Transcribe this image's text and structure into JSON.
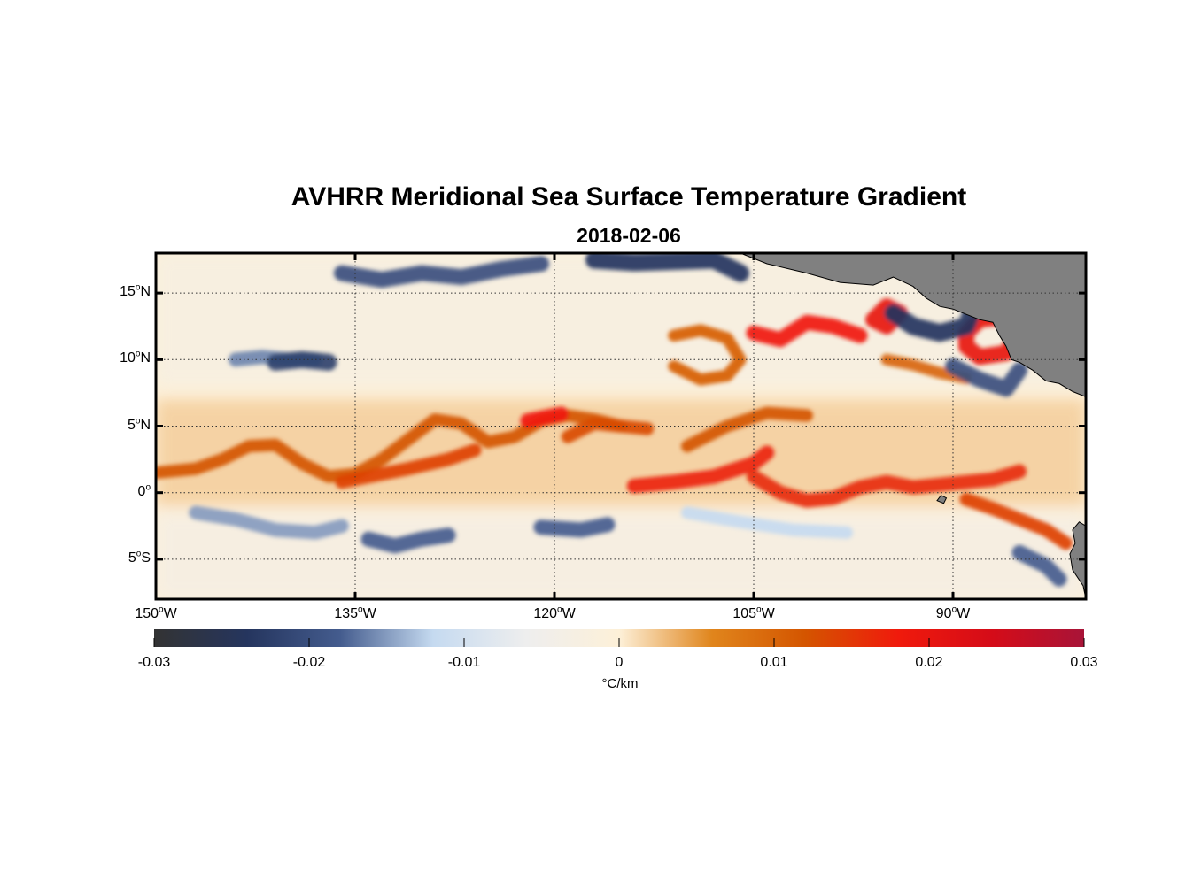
{
  "title": "AVHRR Meridional Sea Surface Temperature Gradient",
  "subtitle": "2018-02-06",
  "map": {
    "projection": "equirectangular",
    "lon_range": [
      -150,
      -80
    ],
    "lat_range": [
      -8,
      18
    ],
    "grid": "dotted",
    "land_color": "#808080",
    "lat_ticks": [
      {
        "value": 15,
        "num": "15",
        "hemi": "N"
      },
      {
        "value": 10,
        "num": "10",
        "hemi": "N"
      },
      {
        "value": 5,
        "num": "5",
        "hemi": "N"
      },
      {
        "value": 0,
        "num": "0",
        "hemi": ""
      },
      {
        "value": -5,
        "num": "5",
        "hemi": "S"
      }
    ],
    "lon_ticks": [
      {
        "value": -150,
        "num": "150",
        "hemi": "W"
      },
      {
        "value": -135,
        "num": "135",
        "hemi": "W"
      },
      {
        "value": -120,
        "num": "120",
        "hemi": "W"
      },
      {
        "value": -105,
        "num": "105",
        "hemi": "W"
      },
      {
        "value": -90,
        "num": "90",
        "hemi": "W"
      }
    ],
    "features": [
      {
        "kind": "front",
        "sign": "positive",
        "strength": 0.012,
        "points": [
          [
            -150,
            1.5
          ],
          [
            -147,
            1.8
          ],
          [
            -145,
            2.5
          ],
          [
            -143,
            3.5
          ],
          [
            -141,
            3.6
          ],
          [
            -139,
            2.2
          ],
          [
            -137,
            1.2
          ],
          [
            -135,
            1.4
          ],
          [
            -133,
            2.5
          ],
          [
            -131,
            4.0
          ],
          [
            -129,
            5.5
          ],
          [
            -127,
            5.2
          ],
          [
            -125,
            3.8
          ],
          [
            -123,
            4.2
          ],
          [
            -121,
            5.4
          ],
          [
            -119,
            5.8
          ],
          [
            -117,
            5.5
          ],
          [
            -115,
            5.0
          ]
        ]
      },
      {
        "kind": "front",
        "sign": "positive",
        "strength": 0.014,
        "points": [
          [
            -136,
            0.8
          ],
          [
            -134,
            1.2
          ],
          [
            -131,
            1.8
          ],
          [
            -128,
            2.5
          ],
          [
            -126,
            3.2
          ]
        ]
      },
      {
        "kind": "front",
        "sign": "positive",
        "strength": 0.018,
        "points": [
          [
            -122,
            5.4
          ],
          [
            -119.5,
            5.9
          ]
        ]
      },
      {
        "kind": "front",
        "sign": "positive",
        "strength": 0.013,
        "points": [
          [
            -119,
            4.2
          ],
          [
            -117,
            5.2
          ],
          [
            -115,
            5.0
          ],
          [
            -113,
            4.8
          ]
        ]
      },
      {
        "kind": "front",
        "sign": "positive",
        "strength": 0.017,
        "points": [
          [
            -114,
            0.5
          ],
          [
            -111,
            0.8
          ],
          [
            -108,
            1.2
          ],
          [
            -105,
            2.2
          ],
          [
            -104,
            3.0
          ]
        ]
      },
      {
        "kind": "front",
        "sign": "positive",
        "strength": 0.012,
        "points": [
          [
            -110,
            3.5
          ],
          [
            -107,
            5.0
          ],
          [
            -104,
            6.0
          ],
          [
            -101,
            5.8
          ]
        ]
      },
      {
        "kind": "front",
        "sign": "positive",
        "strength": 0.016,
        "points": [
          [
            -105,
            1.2
          ],
          [
            -103,
            0.0
          ],
          [
            -101,
            -0.6
          ],
          [
            -99,
            -0.4
          ],
          [
            -97,
            0.4
          ],
          [
            -95,
            0.8
          ],
          [
            -93,
            0.4
          ],
          [
            -91,
            0.6
          ],
          [
            -89,
            0.8
          ],
          [
            -87,
            1.0
          ],
          [
            -85,
            1.6
          ]
        ]
      },
      {
        "kind": "front",
        "sign": "positive",
        "strength": 0.014,
        "points": [
          [
            -89,
            -0.5
          ],
          [
            -87,
            -1.2
          ],
          [
            -85,
            -2.0
          ],
          [
            -83,
            -2.8
          ],
          [
            -81.5,
            -3.8
          ]
        ]
      },
      {
        "kind": "front",
        "sign": "positive",
        "strength": 0.018,
        "points": [
          [
            -105,
            12.0
          ],
          [
            -103,
            11.5
          ],
          [
            -101,
            12.8
          ],
          [
            -99,
            12.5
          ],
          [
            -97,
            11.8
          ]
        ]
      },
      {
        "kind": "front",
        "sign": "positive",
        "strength": 0.02,
        "points": [
          [
            -96,
            13.0
          ],
          [
            -95,
            14.0
          ],
          [
            -94,
            13.5
          ],
          [
            -95,
            12.5
          ],
          [
            -96,
            13.0
          ]
        ]
      },
      {
        "kind": "front",
        "sign": "positive",
        "strength": 0.02,
        "points": [
          [
            -89,
            12.0
          ],
          [
            -88,
            13.0
          ],
          [
            -86,
            13.2
          ],
          [
            -85,
            12.0
          ],
          [
            -86,
            10.5
          ],
          [
            -88,
            10.2
          ],
          [
            -89,
            11.0
          ],
          [
            -89,
            12.0
          ]
        ]
      },
      {
        "kind": "front",
        "sign": "positive",
        "strength": 0.011,
        "points": [
          [
            -111,
            11.8
          ],
          [
            -109,
            12.2
          ],
          [
            -107,
            11.6
          ],
          [
            -106,
            10.0
          ],
          [
            -107,
            8.8
          ],
          [
            -109,
            8.5
          ],
          [
            -111,
            9.5
          ]
        ]
      },
      {
        "kind": "front",
        "sign": "positive",
        "strength": 0.01,
        "points": [
          [
            -95,
            10.0
          ],
          [
            -93,
            9.6
          ],
          [
            -91,
            9.0
          ],
          [
            -89,
            8.6
          ]
        ]
      },
      {
        "kind": "front",
        "sign": "negative",
        "strength": -0.024,
        "points": [
          [
            -94.5,
            13.5
          ],
          [
            -93,
            12.5
          ],
          [
            -91,
            12.0
          ],
          [
            -89,
            12.5
          ],
          [
            -88.5,
            13.8
          ]
        ]
      },
      {
        "kind": "front",
        "sign": "negative",
        "strength": -0.02,
        "points": [
          [
            -90,
            9.5
          ],
          [
            -88,
            8.5
          ],
          [
            -86,
            7.8
          ],
          [
            -85,
            9.2
          ]
        ]
      },
      {
        "kind": "front",
        "sign": "negative",
        "strength": -0.02,
        "points": [
          [
            -136,
            16.5
          ],
          [
            -133,
            16.0
          ],
          [
            -130,
            16.5
          ],
          [
            -127,
            16.2
          ],
          [
            -124,
            16.8
          ],
          [
            -121,
            17.2
          ]
        ]
      },
      {
        "kind": "front",
        "sign": "negative",
        "strength": -0.024,
        "points": [
          [
            -117,
            17.5
          ],
          [
            -114,
            17.3
          ],
          [
            -111,
            17.4
          ],
          [
            -108,
            17.5
          ],
          [
            -106,
            16.5
          ]
        ]
      },
      {
        "kind": "front",
        "sign": "negative",
        "strength": -0.018,
        "points": [
          [
            -134,
            -3.5
          ],
          [
            -132,
            -4.0
          ],
          [
            -130,
            -3.5
          ],
          [
            -128,
            -3.2
          ]
        ]
      },
      {
        "kind": "front",
        "sign": "negative",
        "strength": -0.018,
        "points": [
          [
            -121,
            -2.6
          ],
          [
            -118,
            -2.8
          ],
          [
            -116,
            -2.4
          ]
        ]
      },
      {
        "kind": "front",
        "sign": "negative",
        "strength": -0.015,
        "points": [
          [
            -147,
            -1.5
          ],
          [
            -144,
            -2.0
          ],
          [
            -141,
            -2.8
          ],
          [
            -138,
            -3.0
          ],
          [
            -136,
            -2.5
          ]
        ]
      },
      {
        "kind": "front",
        "sign": "negative",
        "strength": -0.016,
        "points": [
          [
            -144,
            10.0
          ],
          [
            -142,
            10.2
          ],
          [
            -140,
            10.0
          ],
          [
            -138,
            10.0
          ]
        ]
      },
      {
        "kind": "front",
        "sign": "negative",
        "strength": -0.022,
        "points": [
          [
            -141,
            9.8
          ],
          [
            -139,
            10.0
          ],
          [
            -137,
            9.8
          ]
        ]
      },
      {
        "kind": "front",
        "sign": "negative",
        "strength": -0.018,
        "points": [
          [
            -85,
            -4.5
          ],
          [
            -83,
            -5.5
          ],
          [
            -82,
            -6.5
          ]
        ]
      },
      {
        "kind": "front",
        "sign": "negative",
        "strength": -0.012,
        "points": [
          [
            -110,
            -1.5
          ],
          [
            -106,
            -2.2
          ],
          [
            -102,
            -2.8
          ],
          [
            -98,
            -3.0
          ]
        ]
      }
    ],
    "land": [
      {
        "name": "Mexico",
        "points": [
          [
            -106,
            18
          ],
          [
            -104,
            17.2
          ],
          [
            -101,
            16.5
          ],
          [
            -98.5,
            15.8
          ],
          [
            -96,
            15.6
          ],
          [
            -94.5,
            16.2
          ],
          [
            -93,
            15.5
          ],
          [
            -92,
            14.6
          ],
          [
            -91,
            14.0
          ],
          [
            -90,
            13.8
          ],
          [
            -89,
            13.4
          ],
          [
            -88,
            13.0
          ],
          [
            -87,
            12.8
          ],
          [
            -86.5,
            11.8
          ],
          [
            -86,
            11.0
          ],
          [
            -85.6,
            10.0
          ],
          [
            -85,
            9.8
          ],
          [
            -84,
            9.2
          ],
          [
            -83,
            8.4
          ],
          [
            -82,
            8.2
          ],
          [
            -81,
            7.6
          ],
          [
            -80,
            7.2
          ],
          [
            -80,
            18
          ],
          [
            -106,
            18
          ]
        ]
      },
      {
        "name": "South America",
        "points": [
          [
            -80,
            -2.5
          ],
          [
            -80.5,
            -2.2
          ],
          [
            -81,
            -2.8
          ],
          [
            -80.8,
            -3.8
          ],
          [
            -81.2,
            -4.6
          ],
          [
            -81,
            -5.8
          ],
          [
            -80.2,
            -7.0
          ],
          [
            -80,
            -8
          ],
          [
            -80,
            -2.5
          ]
        ]
      },
      {
        "name": "Galapagos",
        "points": [
          [
            -91.2,
            -0.6
          ],
          [
            -90.7,
            -0.8
          ],
          [
            -90.5,
            -0.4
          ],
          [
            -90.9,
            -0.2
          ],
          [
            -91.2,
            -0.6
          ]
        ]
      }
    ]
  },
  "colorbar": {
    "min": -0.03,
    "max": 0.03,
    "ticks": [
      "-0.03",
      "-0.02",
      "-0.01",
      "0",
      "0.01",
      "0.02",
      "0.03"
    ],
    "tick_values": [
      -0.03,
      -0.02,
      -0.01,
      0,
      0.01,
      0.02,
      0.03
    ],
    "unit": "°C/km",
    "colors": [
      "#333333",
      "#25355e",
      "#445c8e",
      "#c5daf0",
      "#eeeeee",
      "#fdf0d8",
      "#e0851c",
      "#d45500",
      "#f01a0c",
      "#d50c18",
      "#a81438"
    ]
  }
}
